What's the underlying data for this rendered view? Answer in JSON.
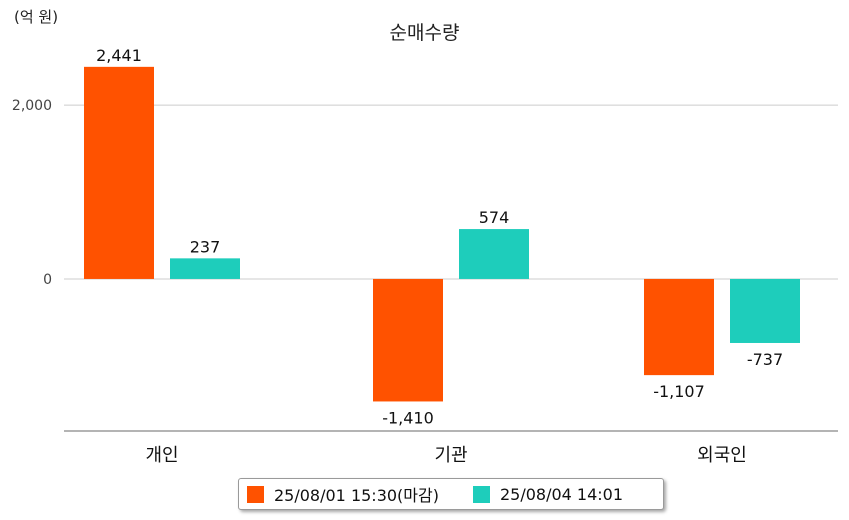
{
  "unit_label": "(억 원)",
  "colors": {
    "series1": "#ff5200",
    "series2": "#1ecdbb",
    "gridline": "#cccccc",
    "axis": "#888888"
  },
  "chart_data": {
    "type": "bar",
    "title": "순매수량",
    "categories": [
      "개인",
      "기관",
      "외국인"
    ],
    "series": [
      {
        "name": "25/08/01 15:30(마감)",
        "values": [
          2441,
          -1410,
          -1107
        ]
      },
      {
        "name": "25/08/04 14:01",
        "values": [
          237,
          574,
          -737
        ]
      }
    ],
    "data_labels": [
      [
        "2,441",
        "-1,410",
        "-1,107"
      ],
      [
        "237",
        "574",
        "-737"
      ]
    ],
    "yticks": [
      "2,000",
      "0"
    ],
    "ytick_values": [
      2000,
      0
    ],
    "ylim": [
      -1750,
      2750
    ],
    "grid": true,
    "legend_position": "bottom"
  }
}
